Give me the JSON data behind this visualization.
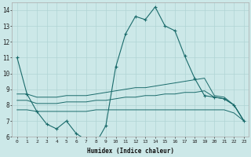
{
  "xlabel": "Humidex (Indice chaleur)",
  "background_color": "#cce8e8",
  "grid_color": "#b0d4d4",
  "line_color": "#1a6b6b",
  "xlim": [
    -0.5,
    23.5
  ],
  "ylim": [
    6,
    14.5
  ],
  "xticks": [
    0,
    1,
    2,
    3,
    4,
    5,
    6,
    7,
    8,
    9,
    10,
    11,
    12,
    13,
    14,
    15,
    16,
    17,
    18,
    19,
    20,
    21,
    22,
    23
  ],
  "yticks": [
    6,
    7,
    8,
    9,
    10,
    11,
    12,
    13,
    14
  ],
  "line1_x": [
    0,
    1,
    2,
    3,
    4,
    5,
    6,
    7,
    8,
    9,
    10,
    11,
    12,
    13,
    14,
    15,
    16,
    17,
    18,
    19,
    20,
    21,
    22,
    23
  ],
  "line1_y": [
    11.0,
    8.7,
    7.6,
    6.8,
    6.5,
    7.0,
    6.2,
    5.8,
    5.6,
    6.7,
    10.4,
    12.5,
    13.6,
    13.4,
    14.2,
    13.0,
    12.7,
    11.1,
    9.7,
    8.6,
    8.5,
    8.4,
    8.0,
    7.0
  ],
  "line2_x": [
    0,
    1,
    2,
    3,
    4,
    5,
    6,
    7,
    8,
    9,
    10,
    11,
    12,
    13,
    14,
    15,
    16,
    17,
    18,
    19,
    20,
    21,
    22,
    23
  ],
  "line2_y": [
    8.7,
    8.7,
    8.5,
    8.5,
    8.5,
    8.6,
    8.6,
    8.6,
    8.7,
    8.8,
    8.9,
    9.0,
    9.1,
    9.1,
    9.2,
    9.3,
    9.4,
    9.5,
    9.6,
    9.7,
    8.6,
    8.5,
    8.0,
    7.0
  ],
  "line3_x": [
    0,
    1,
    2,
    3,
    4,
    5,
    6,
    7,
    8,
    9,
    10,
    11,
    12,
    13,
    14,
    15,
    16,
    17,
    18,
    19,
    20,
    21,
    22,
    23
  ],
  "line3_y": [
    8.3,
    8.3,
    8.1,
    8.1,
    8.1,
    8.2,
    8.2,
    8.2,
    8.3,
    8.3,
    8.4,
    8.5,
    8.5,
    8.6,
    8.6,
    8.7,
    8.7,
    8.8,
    8.8,
    8.9,
    8.5,
    8.4,
    8.0,
    7.0
  ],
  "line4_x": [
    0,
    1,
    2,
    3,
    4,
    5,
    6,
    7,
    8,
    9,
    10,
    11,
    12,
    13,
    14,
    15,
    16,
    17,
    18,
    19,
    20,
    21,
    22,
    23
  ],
  "line4_y": [
    7.7,
    7.7,
    7.6,
    7.6,
    7.6,
    7.6,
    7.6,
    7.6,
    7.7,
    7.7,
    7.7,
    7.7,
    7.7,
    7.7,
    7.7,
    7.7,
    7.7,
    7.7,
    7.7,
    7.7,
    7.7,
    7.7,
    7.5,
    7.0
  ]
}
